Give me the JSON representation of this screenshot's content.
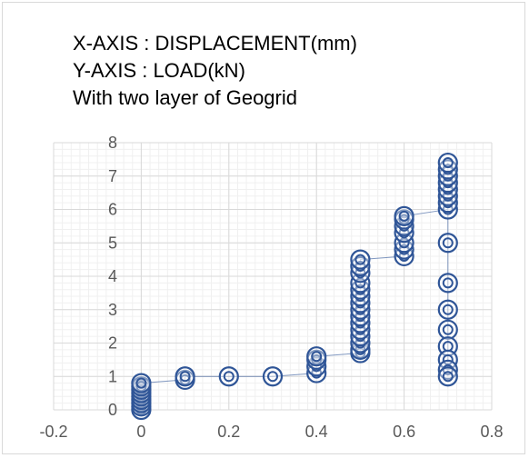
{
  "chart_data": {
    "type": "scatter",
    "title_lines": [
      "X-AXIS : DISPLACEMENT(mm)",
      "Y-AXIS : LOAD(kN)",
      "With two layer of Geogrid"
    ],
    "xlim": [
      -0.2,
      0.8
    ],
    "ylim": [
      0,
      8
    ],
    "x_ticks": [
      "-0.2",
      "0",
      "0.2",
      "0.4",
      "0.6",
      "0.8"
    ],
    "y_ticks": [
      "0",
      "1",
      "2",
      "3",
      "4",
      "5",
      "6",
      "7",
      "8"
    ],
    "grid": true,
    "marker": "circle-ring",
    "connected": true,
    "series": [
      {
        "color": "#2f5597",
        "points": [
          [
            0,
            0.0
          ],
          [
            0,
            0.1
          ],
          [
            0,
            0.2
          ],
          [
            0,
            0.3
          ],
          [
            0,
            0.4
          ],
          [
            0,
            0.5
          ],
          [
            0,
            0.6
          ],
          [
            0,
            0.7
          ],
          [
            0,
            0.8
          ],
          [
            0.1,
            0.9
          ],
          [
            0.1,
            1.0
          ],
          [
            0.2,
            1.0
          ],
          [
            0.3,
            1.0
          ],
          [
            0.4,
            1.1
          ],
          [
            0.4,
            1.3
          ],
          [
            0.4,
            1.5
          ],
          [
            0.4,
            1.6
          ],
          [
            0.5,
            1.7
          ],
          [
            0.5,
            1.8
          ],
          [
            0.5,
            2.0
          ],
          [
            0.5,
            2.2
          ],
          [
            0.5,
            2.4
          ],
          [
            0.5,
            2.6
          ],
          [
            0.5,
            2.8
          ],
          [
            0.5,
            3.0
          ],
          [
            0.5,
            3.2
          ],
          [
            0.5,
            3.4
          ],
          [
            0.5,
            3.6
          ],
          [
            0.5,
            3.8
          ],
          [
            0.5,
            4.1
          ],
          [
            0.5,
            4.3
          ],
          [
            0.5,
            4.5
          ],
          [
            0.6,
            4.6
          ],
          [
            0.6,
            4.8
          ],
          [
            0.6,
            5.0
          ],
          [
            0.6,
            5.3
          ],
          [
            0.6,
            5.5
          ],
          [
            0.6,
            5.7
          ],
          [
            0.6,
            5.8
          ],
          [
            0.7,
            6.0
          ],
          [
            0.7,
            6.2
          ],
          [
            0.7,
            6.4
          ],
          [
            0.7,
            6.6
          ],
          [
            0.7,
            6.8
          ],
          [
            0.7,
            7.0
          ],
          [
            0.7,
            7.2
          ],
          [
            0.7,
            7.4
          ],
          [
            0.7,
            5.0
          ],
          [
            0.7,
            3.8
          ],
          [
            0.7,
            3.0
          ],
          [
            0.7,
            2.4
          ],
          [
            0.7,
            1.9
          ],
          [
            0.7,
            1.5
          ],
          [
            0.7,
            1.2
          ],
          [
            0.7,
            1.0
          ]
        ]
      }
    ]
  }
}
